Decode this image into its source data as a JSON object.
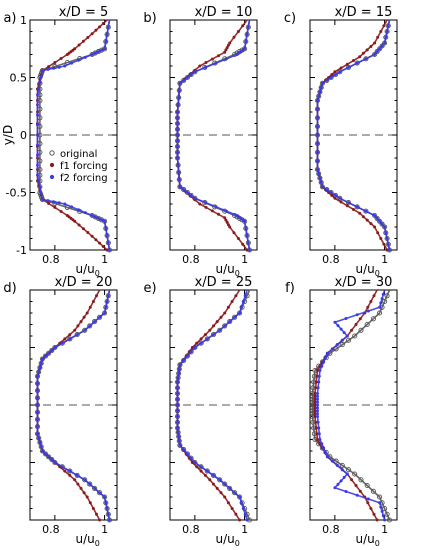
{
  "figure": {
    "ylabel": "y/D",
    "xlabel_main": "u/u",
    "xlabel_sub": "0",
    "yticks": [
      "1",
      "0.5",
      "0",
      "-0.5",
      "-1"
    ],
    "xticks": [
      "0.8",
      "1"
    ]
  },
  "legend": {
    "entries": [
      {
        "label": "original",
        "color": "#555555",
        "marker": "open-circle"
      },
      {
        "label": "f1 forcing",
        "color": "#8b1a1a",
        "marker": "dot"
      },
      {
        "label": "f2 forcing",
        "color": "#3a3ae6",
        "marker": "dot"
      }
    ]
  },
  "chart_data": [
    {
      "type": "line",
      "panel": "a)",
      "title": "x/D = 5",
      "xlabel": "u/u0",
      "ylabel": "y/D",
      "xlim": [
        0.7,
        1.05
      ],
      "ylim": [
        -1,
        1
      ],
      "series": [
        {
          "name": "original",
          "color": "#555555",
          "x": [
            0.74,
            0.74,
            0.74,
            0.74,
            0.75,
            0.95,
            1.0,
            1.02,
            1.02,
            1.02,
            1.0,
            0.95,
            0.75,
            0.74,
            0.74,
            0.74,
            0.74
          ],
          "y": [
            -0.3,
            -0.5,
            -0.52,
            -0.54,
            -0.56,
            -0.7,
            -0.75,
            -1.0,
            0,
            1.0,
            0.75,
            0.7,
            0.56,
            0.54,
            0.52,
            0.5,
            0.3
          ]
        },
        {
          "name": "f1 forcing",
          "color": "#8b1a1a",
          "x": [
            0.73,
            0.75,
            0.85,
            0.88,
            0.94,
            0.96,
            1.01,
            1.02,
            1.02,
            1.01,
            0.96,
            0.94,
            0.88,
            0.85,
            0.75,
            0.73
          ],
          "y": [
            -0.35,
            -0.55,
            -0.62,
            -0.65,
            -0.88,
            -0.7,
            -0.75,
            -1.0,
            1.0,
            0.75,
            0.7,
            0.88,
            0.65,
            0.62,
            0.55,
            0.35
          ]
        },
        {
          "name": "f2 forcing",
          "color": "#3a3ae6",
          "x": [
            0.73,
            0.75,
            0.84,
            0.95,
            1.0,
            1.02,
            1.02,
            1.02,
            1.0,
            0.95,
            0.84,
            0.75,
            0.73
          ],
          "y": [
            -0.35,
            -0.55,
            -0.6,
            -0.7,
            -0.75,
            -1.0,
            0,
            1.0,
            0.75,
            0.7,
            0.6,
            0.55,
            0.35
          ]
        }
      ]
    },
    {
      "type": "line",
      "panel": "b)",
      "title": "x/D = 10",
      "xlabel": "u/u0",
      "ylabel": "y/D",
      "xlim": [
        0.7,
        1.05
      ],
      "ylim": [
        -1,
        1
      ]
    },
    {
      "type": "line",
      "panel": "c)",
      "title": "x/D = 15",
      "xlabel": "u/u0",
      "ylabel": "y/D",
      "xlim": [
        0.7,
        1.05
      ],
      "ylim": [
        -1,
        1
      ]
    },
    {
      "type": "line",
      "panel": "d)",
      "title": "x/D = 20",
      "xlabel": "u/u0",
      "ylabel": "y/D",
      "xlim": [
        0.7,
        1.05
      ],
      "ylim": [
        -1,
        1
      ]
    },
    {
      "type": "line",
      "panel": "e)",
      "title": "x/D = 25",
      "xlabel": "u/u0",
      "ylabel": "y/D",
      "xlim": [
        0.7,
        1.05
      ],
      "ylim": [
        -1,
        1
      ]
    },
    {
      "type": "line",
      "panel": "f)",
      "title": "x/D = 30",
      "xlabel": "u/u0",
      "ylabel": "y/D",
      "xlim": [
        0.7,
        1.05
      ],
      "ylim": [
        -1,
        1
      ]
    }
  ],
  "profiles": [
    {
      "panel": "a)",
      "title": "x/D = 5",
      "orig": [
        [
          -1,
          1.02
        ],
        [
          -0.75,
          1.0
        ],
        [
          -0.7,
          0.95
        ],
        [
          -0.56,
          0.75
        ],
        [
          -0.5,
          0.74
        ],
        [
          -0.3,
          0.74
        ],
        [
          0,
          0.74
        ],
        [
          0.3,
          0.74
        ],
        [
          0.5,
          0.74
        ],
        [
          0.56,
          0.75
        ],
        [
          0.7,
          0.95
        ],
        [
          0.75,
          1.0
        ],
        [
          1,
          1.02
        ]
      ],
      "f1": [
        [
          -1,
          1.01
        ],
        [
          -0.88,
          0.95
        ],
        [
          -0.75,
          0.88
        ],
        [
          -0.7,
          0.85
        ],
        [
          -0.56,
          0.75
        ],
        [
          -0.4,
          0.73
        ],
        [
          0,
          0.73
        ],
        [
          0.4,
          0.73
        ],
        [
          0.56,
          0.75
        ],
        [
          0.7,
          0.85
        ],
        [
          0.75,
          0.88
        ],
        [
          0.88,
          0.95
        ],
        [
          1,
          1.01
        ]
      ],
      "f2": [
        [
          -1,
          1.02
        ],
        [
          -0.75,
          1.0
        ],
        [
          -0.7,
          0.95
        ],
        [
          -0.6,
          0.84
        ],
        [
          -0.56,
          0.75
        ],
        [
          -0.35,
          0.73
        ],
        [
          0,
          0.73
        ],
        [
          0.35,
          0.73
        ],
        [
          0.56,
          0.75
        ],
        [
          0.6,
          0.84
        ],
        [
          0.7,
          0.95
        ],
        [
          0.75,
          1.0
        ],
        [
          1,
          1.02
        ]
      ]
    },
    {
      "panel": "b)",
      "title": "x/D = 10",
      "orig": [
        [
          -1,
          1.02
        ],
        [
          -0.75,
          1.0
        ],
        [
          -0.7,
          0.96
        ],
        [
          -0.55,
          0.8
        ],
        [
          -0.45,
          0.74
        ],
        [
          -0.2,
          0.73
        ],
        [
          0,
          0.73
        ],
        [
          0.2,
          0.73
        ],
        [
          0.45,
          0.74
        ],
        [
          0.55,
          0.8
        ],
        [
          0.7,
          0.96
        ],
        [
          0.75,
          1.0
        ],
        [
          1,
          1.02
        ]
      ],
      "f1": [
        [
          -1,
          1.01
        ],
        [
          -0.8,
          0.94
        ],
        [
          -0.72,
          0.92
        ],
        [
          -0.6,
          0.82
        ],
        [
          -0.45,
          0.74
        ],
        [
          -0.2,
          0.73
        ],
        [
          0,
          0.73
        ],
        [
          0.2,
          0.73
        ],
        [
          0.45,
          0.74
        ],
        [
          0.6,
          0.82
        ],
        [
          0.72,
          0.92
        ],
        [
          0.8,
          0.94
        ],
        [
          1,
          1.01
        ]
      ],
      "f2": [
        [
          -1,
          1.02
        ],
        [
          -0.75,
          1.0
        ],
        [
          -0.7,
          0.97
        ],
        [
          -0.55,
          0.8
        ],
        [
          -0.45,
          0.74
        ],
        [
          -0.2,
          0.73
        ],
        [
          0,
          0.73
        ],
        [
          0.2,
          0.73
        ],
        [
          0.45,
          0.74
        ],
        [
          0.55,
          0.8
        ],
        [
          0.7,
          0.97
        ],
        [
          0.75,
          1.0
        ],
        [
          1,
          1.02
        ]
      ]
    },
    {
      "panel": "c)",
      "title": "x/D = 15",
      "orig": [
        [
          -1,
          1.02
        ],
        [
          -0.8,
          1.0
        ],
        [
          -0.7,
          0.96
        ],
        [
          -0.55,
          0.82
        ],
        [
          -0.45,
          0.75
        ],
        [
          -0.3,
          0.73
        ],
        [
          0,
          0.73
        ],
        [
          0.3,
          0.73
        ],
        [
          0.45,
          0.75
        ],
        [
          0.55,
          0.82
        ],
        [
          0.7,
          0.96
        ],
        [
          0.8,
          1.0
        ],
        [
          1,
          1.02
        ]
      ],
      "f1": [
        [
          -1,
          1.01
        ],
        [
          -0.8,
          0.96
        ],
        [
          -0.68,
          0.9
        ],
        [
          -0.55,
          0.8
        ],
        [
          -0.45,
          0.75
        ],
        [
          -0.3,
          0.73
        ],
        [
          0,
          0.73
        ],
        [
          0.3,
          0.73
        ],
        [
          0.45,
          0.75
        ],
        [
          0.55,
          0.8
        ],
        [
          0.68,
          0.9
        ],
        [
          0.8,
          0.96
        ],
        [
          1,
          1.01
        ]
      ],
      "f2": [
        [
          -1,
          1.02
        ],
        [
          -0.8,
          1.0
        ],
        [
          -0.7,
          0.96
        ],
        [
          -0.55,
          0.82
        ],
        [
          -0.45,
          0.75
        ],
        [
          -0.3,
          0.73
        ],
        [
          0,
          0.73
        ],
        [
          0.3,
          0.73
        ],
        [
          0.45,
          0.75
        ],
        [
          0.55,
          0.82
        ],
        [
          0.7,
          0.96
        ],
        [
          0.8,
          1.0
        ],
        [
          1,
          1.02
        ]
      ]
    },
    {
      "panel": "d)",
      "title": "x/D = 20",
      "orig": [
        [
          -1,
          1.02
        ],
        [
          -0.8,
          1.0
        ],
        [
          -0.65,
          0.92
        ],
        [
          -0.5,
          0.8
        ],
        [
          -0.4,
          0.75
        ],
        [
          -0.25,
          0.73
        ],
        [
          0,
          0.73
        ],
        [
          0.25,
          0.73
        ],
        [
          0.4,
          0.75
        ],
        [
          0.5,
          0.8
        ],
        [
          0.65,
          0.92
        ],
        [
          0.8,
          1.0
        ],
        [
          1,
          1.02
        ]
      ],
      "f1": [
        [
          -1,
          0.98
        ],
        [
          -0.8,
          0.93
        ],
        [
          -0.65,
          0.88
        ],
        [
          -0.5,
          0.8
        ],
        [
          -0.4,
          0.75
        ],
        [
          -0.25,
          0.73
        ],
        [
          0,
          0.73
        ],
        [
          0.25,
          0.73
        ],
        [
          0.4,
          0.75
        ],
        [
          0.5,
          0.8
        ],
        [
          0.65,
          0.88
        ],
        [
          0.8,
          0.93
        ],
        [
          1,
          0.98
        ]
      ],
      "f2": [
        [
          -1,
          1.02
        ],
        [
          -0.8,
          1.0
        ],
        [
          -0.65,
          0.92
        ],
        [
          -0.5,
          0.8
        ],
        [
          -0.4,
          0.75
        ],
        [
          -0.25,
          0.73
        ],
        [
          0,
          0.73
        ],
        [
          0.25,
          0.73
        ],
        [
          0.4,
          0.75
        ],
        [
          0.5,
          0.8
        ],
        [
          0.65,
          0.92
        ],
        [
          0.8,
          1.0
        ],
        [
          1,
          1.02
        ]
      ]
    },
    {
      "panel": "e)",
      "title": "x/D = 25",
      "orig": [
        [
          -1,
          1.02
        ],
        [
          -0.8,
          0.98
        ],
        [
          -0.65,
          0.9
        ],
        [
          -0.5,
          0.8
        ],
        [
          -0.35,
          0.74
        ],
        [
          -0.2,
          0.73
        ],
        [
          0,
          0.73
        ],
        [
          0.2,
          0.73
        ],
        [
          0.35,
          0.74
        ],
        [
          0.5,
          0.8
        ],
        [
          0.65,
          0.9
        ],
        [
          0.8,
          0.98
        ],
        [
          1,
          1.02
        ]
      ],
      "f1": [
        [
          -1,
          0.98
        ],
        [
          -0.8,
          0.92
        ],
        [
          -0.65,
          0.86
        ],
        [
          -0.5,
          0.79
        ],
        [
          -0.35,
          0.74
        ],
        [
          -0.2,
          0.73
        ],
        [
          0,
          0.73
        ],
        [
          0.2,
          0.73
        ],
        [
          0.35,
          0.74
        ],
        [
          0.5,
          0.79
        ],
        [
          0.65,
          0.86
        ],
        [
          0.8,
          0.92
        ],
        [
          1,
          0.98
        ]
      ],
      "f2": [
        [
          -1,
          1.01
        ],
        [
          -0.8,
          0.98
        ],
        [
          -0.65,
          0.9
        ],
        [
          -0.5,
          0.8
        ],
        [
          -0.35,
          0.74
        ],
        [
          -0.2,
          0.73
        ],
        [
          0,
          0.73
        ],
        [
          0.2,
          0.73
        ],
        [
          0.35,
          0.74
        ],
        [
          0.5,
          0.8
        ],
        [
          0.65,
          0.9
        ],
        [
          0.8,
          0.98
        ],
        [
          1,
          1.01
        ]
      ]
    },
    {
      "panel": "f)",
      "title": "x/D = 30",
      "orig": [
        [
          -1,
          1.02
        ],
        [
          -0.8,
          0.98
        ],
        [
          -0.6,
          0.88
        ],
        [
          -0.45,
          0.78
        ],
        [
          -0.3,
          0.72
        ],
        [
          -0.1,
          0.71
        ],
        [
          0,
          0.71
        ],
        [
          0.1,
          0.71
        ],
        [
          0.3,
          0.72
        ],
        [
          0.45,
          0.78
        ],
        [
          0.6,
          0.88
        ],
        [
          0.8,
          0.98
        ],
        [
          1,
          1.02
        ]
      ],
      "f1": [
        [
          -1,
          0.97
        ],
        [
          -0.8,
          0.92
        ],
        [
          -0.6,
          0.85
        ],
        [
          -0.45,
          0.77
        ],
        [
          -0.3,
          0.73
        ],
        [
          -0.1,
          0.72
        ],
        [
          0,
          0.72
        ],
        [
          0.1,
          0.72
        ],
        [
          0.3,
          0.73
        ],
        [
          0.45,
          0.77
        ],
        [
          0.6,
          0.85
        ],
        [
          0.8,
          0.92
        ],
        [
          1,
          0.97
        ]
      ],
      "f2": [
        [
          -1,
          1.0
        ],
        [
          -0.85,
          0.98
        ],
        [
          -0.72,
          0.8
        ],
        [
          -0.6,
          0.85
        ],
        [
          -0.45,
          0.77
        ],
        [
          -0.3,
          0.74
        ],
        [
          -0.1,
          0.73
        ],
        [
          0,
          0.73
        ],
        [
          0.1,
          0.73
        ],
        [
          0.3,
          0.74
        ],
        [
          0.45,
          0.77
        ],
        [
          0.6,
          0.85
        ],
        [
          0.72,
          0.8
        ],
        [
          0.85,
          0.98
        ],
        [
          1,
          1.0
        ]
      ]
    }
  ]
}
